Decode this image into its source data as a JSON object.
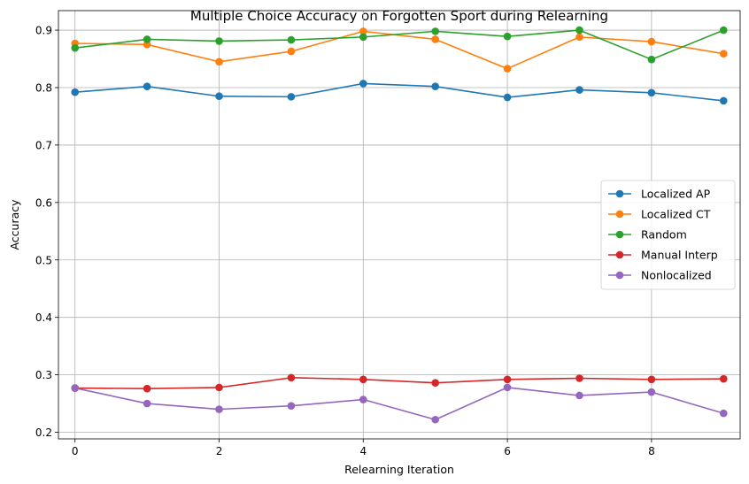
{
  "chart_data": {
    "type": "line",
    "title": "Multiple Choice Accuracy on Forgotten Sport during Relearning",
    "xlabel": "Relearning Iteration",
    "ylabel": "Accuracy",
    "x": [
      0,
      1,
      2,
      3,
      4,
      5,
      6,
      7,
      8,
      9
    ],
    "xlim": [
      -0.23,
      9.23
    ],
    "ylim": [
      0.1885,
      0.934
    ],
    "xticks": [
      0,
      2,
      4,
      6,
      8
    ],
    "yticks": [
      0.2,
      0.3,
      0.4,
      0.5,
      0.6,
      0.7,
      0.8,
      0.9
    ],
    "xtick_labels": [
      "0",
      "2",
      "4",
      "6",
      "8"
    ],
    "ytick_labels": [
      "0.2",
      "0.3",
      "0.4",
      "0.5",
      "0.6",
      "0.7",
      "0.8",
      "0.9"
    ],
    "grid": true,
    "legend_position": "center-right",
    "series": [
      {
        "name": "Localized AP",
        "color": "#1f77b4",
        "values": [
          0.792,
          0.802,
          0.785,
          0.784,
          0.807,
          0.802,
          0.783,
          0.796,
          0.791,
          0.777
        ]
      },
      {
        "name": "Localized CT",
        "color": "#ff7f0e",
        "values": [
          0.877,
          0.875,
          0.845,
          0.863,
          0.898,
          0.884,
          0.833,
          0.888,
          0.88,
          0.859
        ]
      },
      {
        "name": "Random",
        "color": "#2ca02c",
        "values": [
          0.869,
          0.884,
          0.881,
          0.883,
          0.888,
          0.898,
          0.889,
          0.9,
          0.849,
          0.9
        ]
      },
      {
        "name": "Manual Interp",
        "color": "#d62728",
        "values": [
          0.277,
          0.276,
          0.278,
          0.295,
          0.292,
          0.286,
          0.292,
          0.294,
          0.292,
          0.293
        ]
      },
      {
        "name": "Nonlocalized",
        "color": "#9467bd",
        "values": [
          0.277,
          0.25,
          0.24,
          0.246,
          0.257,
          0.222,
          0.278,
          0.264,
          0.27,
          0.233
        ]
      }
    ]
  }
}
